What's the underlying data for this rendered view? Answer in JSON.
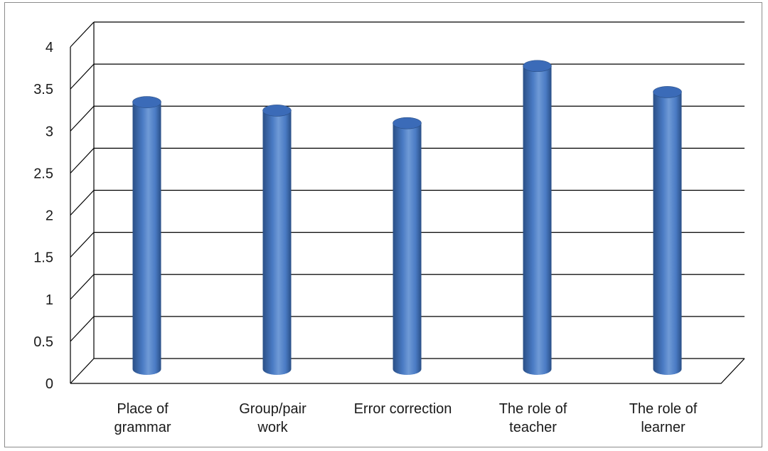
{
  "chart_data": {
    "type": "bar",
    "style": "3d-cylinder",
    "categories": [
      [
        "Place of",
        "grammar"
      ],
      [
        "Group/pair",
        "work"
      ],
      [
        "Error correction"
      ],
      [
        "The role of",
        "teacher"
      ],
      [
        "The role of",
        "learner"
      ]
    ],
    "values": [
      3.2,
      3.1,
      2.95,
      3.63,
      3.32
    ],
    "y_ticks": [
      "0",
      "0.5",
      "1",
      "1.5",
      "2",
      "2.5",
      "3",
      "3.5",
      "4"
    ],
    "ylim": [
      0,
      4
    ],
    "grid": true,
    "legend": "none",
    "title": "",
    "xlabel": "",
    "ylabel": "",
    "colors": {
      "bar_dark": "#2a4f86",
      "bar_mid": "#4a7bc4",
      "bar_light": "#6f9ad6",
      "bar_top": "#3b6bb8",
      "gridline": "#000000"
    }
  }
}
